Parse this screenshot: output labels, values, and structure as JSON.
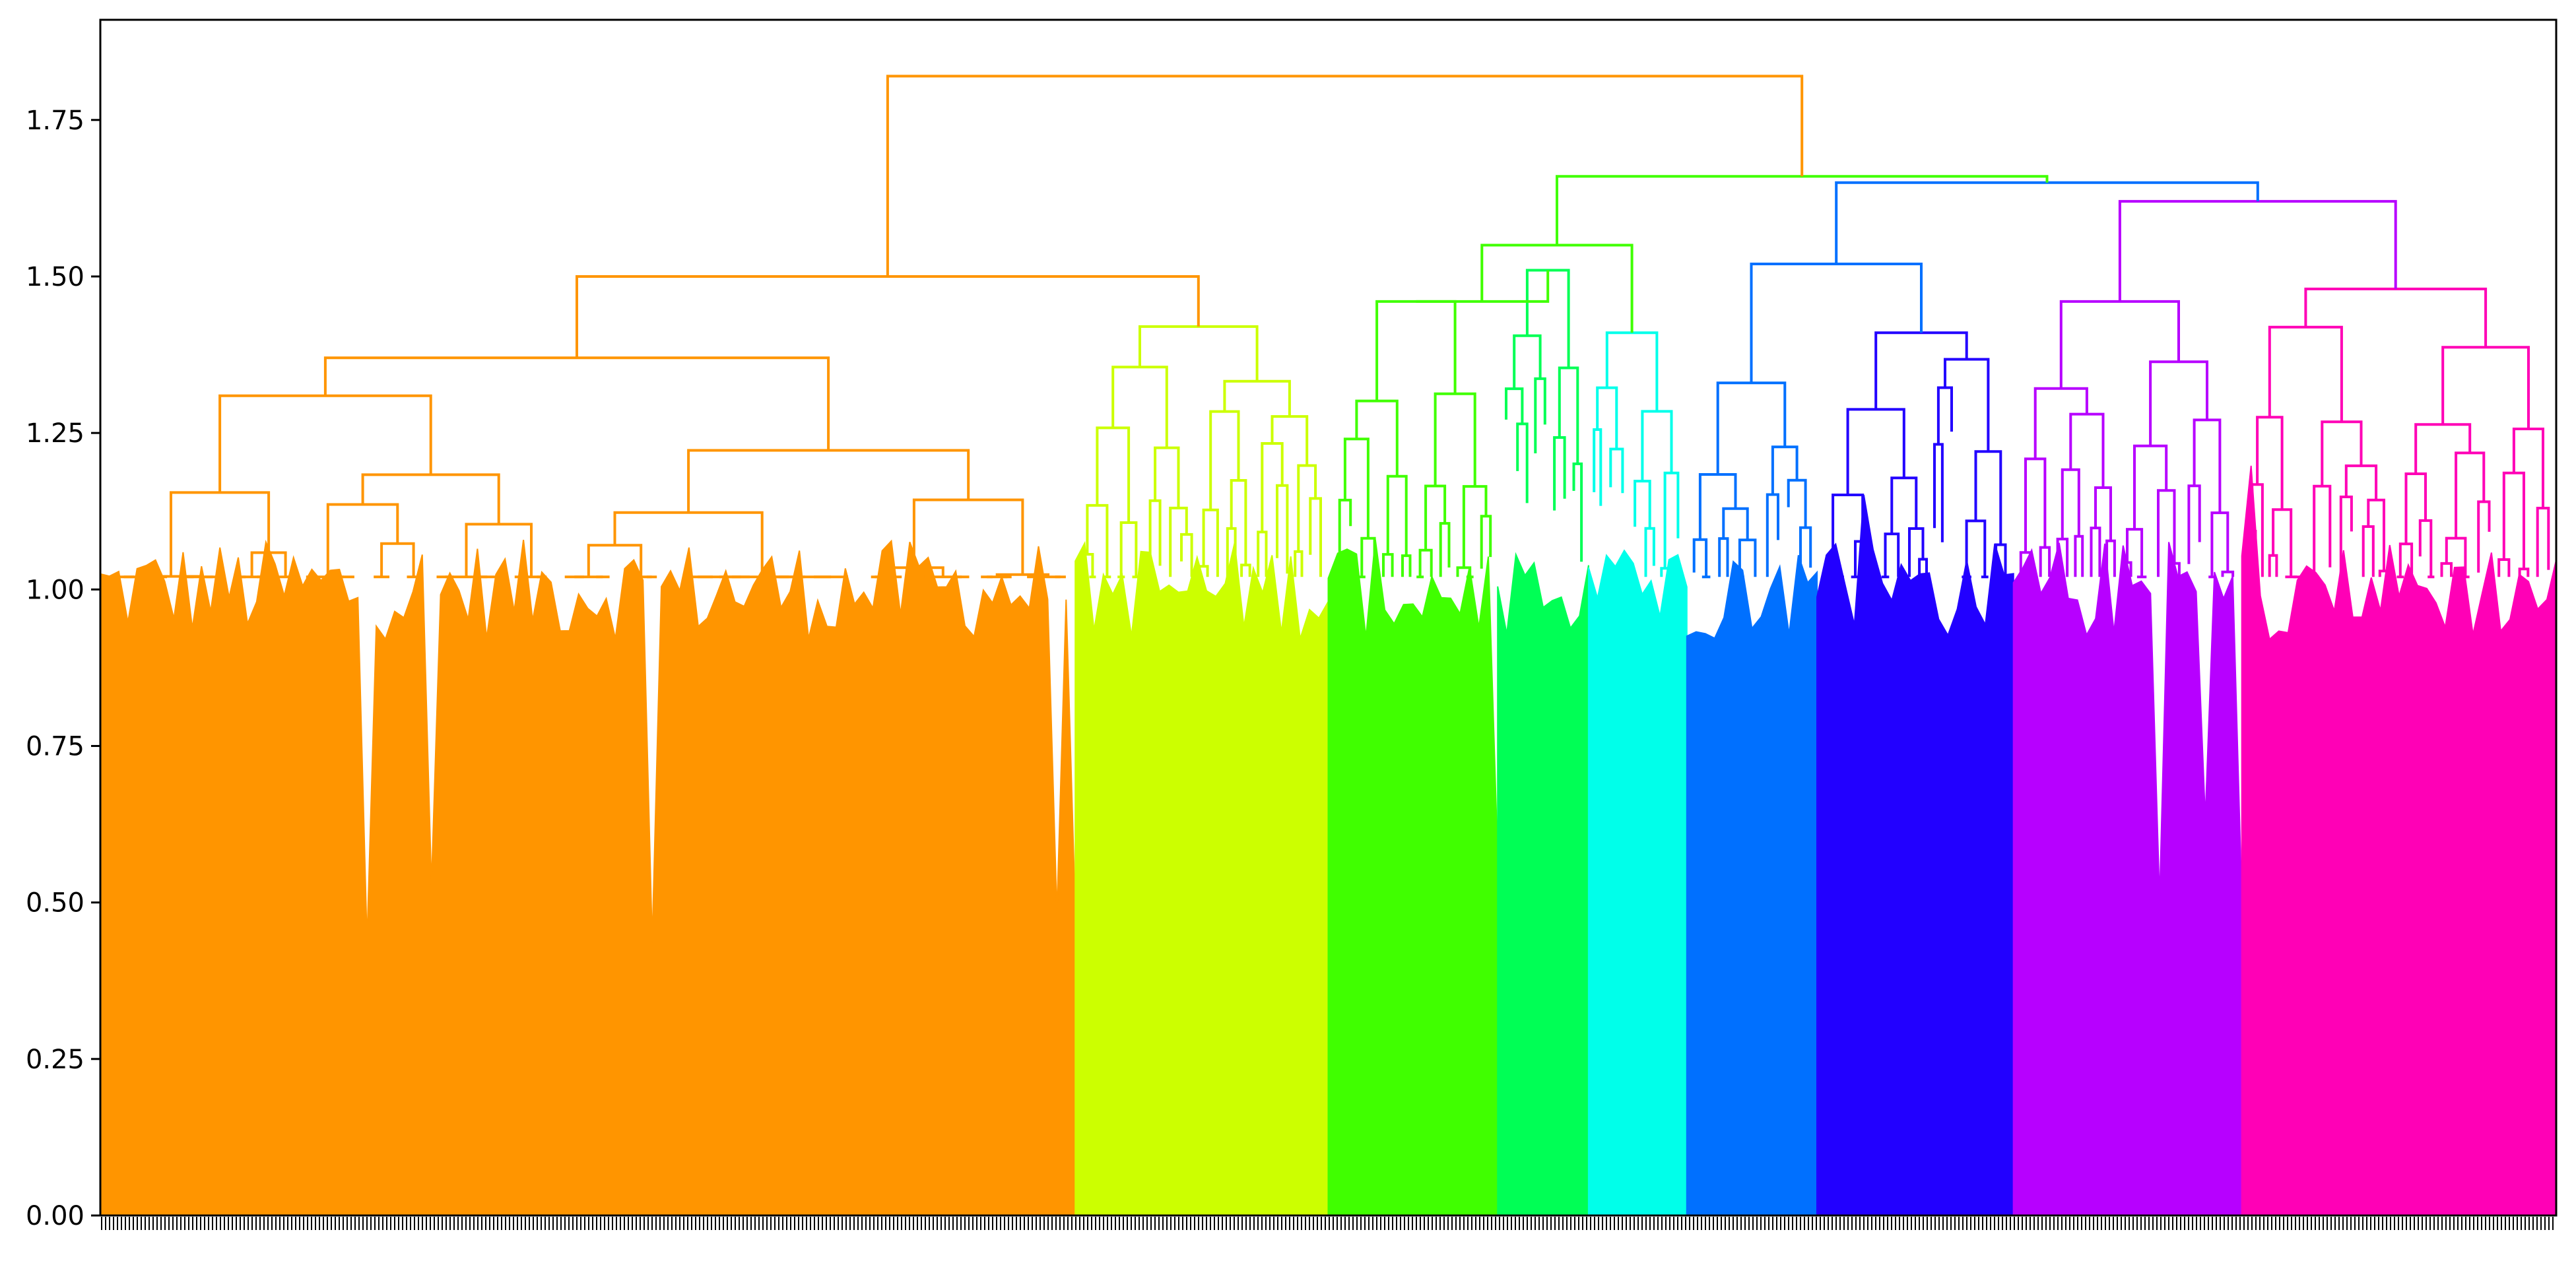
{
  "chart_data": {
    "type": "dendrogram",
    "title": "",
    "xlabel": "",
    "ylabel": "",
    "ylim": [
      0,
      1.91
    ],
    "y_ticks": [
      "0.00",
      "0.25",
      "0.50",
      "0.75",
      "1.00",
      "1.25",
      "1.50",
      "1.75"
    ],
    "y_tick_values": [
      0,
      0.25,
      0.5,
      0.75,
      1.0,
      1.25,
      1.5,
      1.75
    ],
    "grid": false,
    "legend": "none",
    "root_height": 1.82,
    "top_merges": [
      {
        "name": "root",
        "height": 1.82,
        "joins": [
          "orange",
          "green-to-magenta"
        ]
      },
      {
        "name": "orange-yellow",
        "height": 1.5,
        "joins": [
          "orange",
          "yellow"
        ]
      },
      {
        "name": "green-to-magenta",
        "height": 1.66,
        "joins": [
          "green-teal",
          "blue-magenta"
        ]
      },
      {
        "name": "blue-magenta",
        "height": 1.65,
        "joins": [
          "blue",
          "magenta"
        ]
      },
      {
        "name": "green-teal",
        "height": 1.55,
        "joins": [
          "green",
          "teal"
        ]
      }
    ],
    "clusters": [
      {
        "color": "#ff9500",
        "leaf_share": 0.397,
        "top_height": 1.37,
        "min_height": 0.36
      },
      {
        "color": "#ccff00",
        "leaf_share": 0.103,
        "top_height": 1.42,
        "min_height": 0.55
      },
      {
        "color": "#40ff00",
        "leaf_share": 0.069,
        "top_height": 1.46,
        "min_height": 0.48
      },
      {
        "color": "#00ff55",
        "leaf_share": 0.037,
        "top_height": 1.51,
        "min_height": 0.82
      },
      {
        "color": "#00ffea",
        "leaf_share": 0.04,
        "top_height": 1.41,
        "min_height": 0.85
      },
      {
        "color": "#0070ff",
        "leaf_share": 0.053,
        "top_height": 1.33,
        "min_height": 0.78
      },
      {
        "color": "#2200ff",
        "leaf_share": 0.08,
        "top_height": 1.41,
        "min_height": 0.95
      },
      {
        "color": "#b700ff",
        "leaf_share": 0.093,
        "top_height": 1.46,
        "min_height": 0.44
      },
      {
        "color": "#ff00b6",
        "leaf_share": 0.128,
        "top_height": 1.48,
        "min_height": 0.92
      }
    ]
  }
}
